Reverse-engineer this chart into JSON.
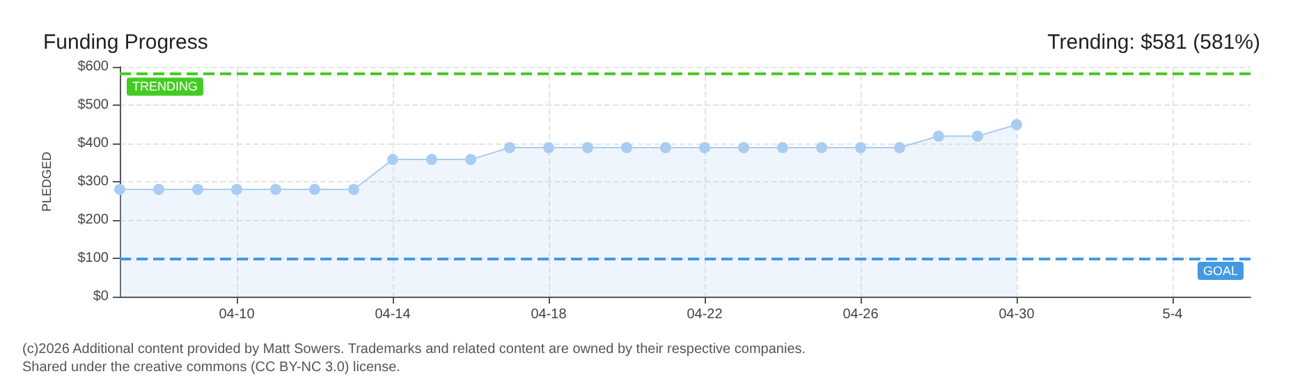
{
  "chart_data": {
    "type": "area",
    "title": "Funding Progress",
    "subtitle": "Trending: $581 (581%)",
    "ylabel": "PLEDGED",
    "x": [
      "--04-07",
      "--04-08",
      "--04-09",
      "--04-10",
      "--04-11",
      "--04-12",
      "--04-13",
      "--04-14",
      "--04-15",
      "--04-16",
      "--04-17",
      "--04-18",
      "--04-19",
      "--04-20",
      "--04-21",
      "--04-22",
      "--04-23",
      "--04-24",
      "--04-25",
      "--04-26",
      "--04-27",
      "--04-28",
      "--04-29",
      "--04-30"
    ],
    "series": [
      {
        "color": "#a9cdf2",
        "values": [
          280,
          280,
          280,
          280,
          280,
          280,
          280,
          358,
          358,
          358,
          389,
          389,
          389,
          389,
          389,
          389,
          389,
          389,
          389,
          389,
          389,
          419,
          419,
          449
        ]
      }
    ],
    "xlim": [
      "--04-07",
      "--05-06"
    ],
    "xticks": [
      {
        "value": "--04-10",
        "label": "04-10"
      },
      {
        "value": "--04-14",
        "label": "04-14"
      },
      {
        "value": "--04-18",
        "label": "04-18"
      },
      {
        "value": "--04-22",
        "label": "04-22"
      },
      {
        "value": "--04-26",
        "label": "04-26"
      },
      {
        "value": "--04-30",
        "label": "04-30"
      },
      {
        "value": "--05-04",
        "label": "5-4"
      }
    ],
    "ylim": [
      0,
      600
    ],
    "yticks": [
      {
        "value": 0,
        "label": "$0"
      },
      {
        "value": 100,
        "label": "$100"
      },
      {
        "value": 200,
        "label": "$200"
      },
      {
        "value": 300,
        "label": "$300"
      },
      {
        "value": 400,
        "label": "$400"
      },
      {
        "value": 500,
        "label": "$500"
      },
      {
        "value": 600,
        "label": "$600"
      }
    ],
    "ref_lines": [
      {
        "axis": "y",
        "value": 581,
        "label": "TRENDING",
        "color": "#44cc22",
        "line_style": "dashed"
      },
      {
        "axis": "y",
        "value": 100,
        "label": "GOAL",
        "color": "#4499e0",
        "line_style": "dashed"
      }
    ],
    "grid": true,
    "marker": "circle",
    "line_style": "solid",
    "annotations": [
      "(c)2026 Additional content provided by Matt Sowers. Trademarks and related content are owned by their respective companies.",
      "Shared under the creative commons (CC BY-NC 3.0) license."
    ]
  }
}
